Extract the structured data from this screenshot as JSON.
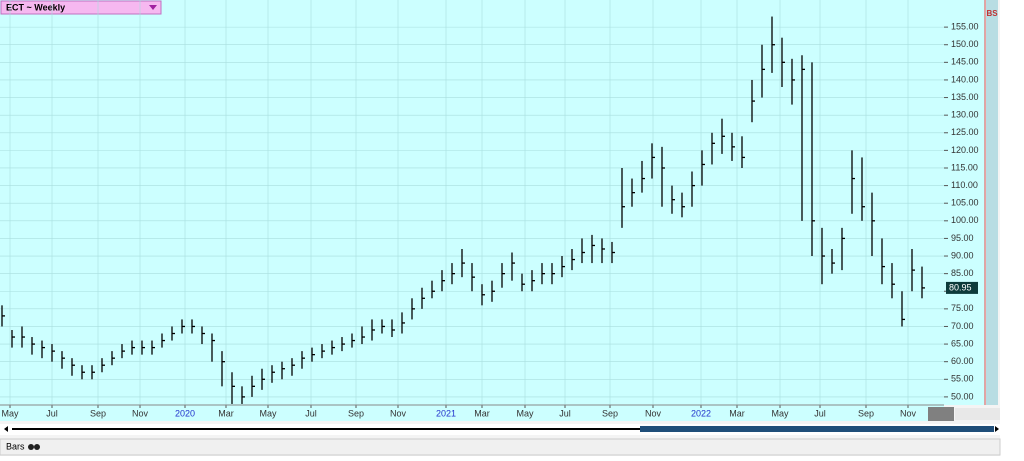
{
  "chart_data": {
    "type": "ohlc",
    "title": "ECT ~ Weekly",
    "footer_label": "Bars",
    "side_label": "BS",
    "color": "#000000",
    "grid": true,
    "background": "#ccffff",
    "year_label_color": "#2233cc",
    "last_label": "80.95",
    "xlim": [
      -0.2,
      94.2
    ],
    "xticks": [
      {
        "value": 0.8,
        "label": "May"
      },
      {
        "value": 5,
        "label": "Jul"
      },
      {
        "value": 9.6,
        "label": "Sep"
      },
      {
        "value": 13.8,
        "label": "Nov"
      },
      {
        "value": 18.3,
        "label": "2020"
      },
      {
        "value": 22.4,
        "label": "Mar"
      },
      {
        "value": 26.6,
        "label": "May"
      },
      {
        "value": 30.9,
        "label": "Jul"
      },
      {
        "value": 35.4,
        "label": "Sep"
      },
      {
        "value": 39.6,
        "label": "Nov"
      },
      {
        "value": 44.4,
        "label": "2021"
      },
      {
        "value": 48,
        "label": "Mar"
      },
      {
        "value": 52.3,
        "label": "May"
      },
      {
        "value": 56.3,
        "label": "Jul"
      },
      {
        "value": 60.8,
        "label": "Sep"
      },
      {
        "value": 65.1,
        "label": "Nov"
      },
      {
        "value": 69.9,
        "label": "2022"
      },
      {
        "value": 73.5,
        "label": "Mar"
      },
      {
        "value": 77.8,
        "label": "May"
      },
      {
        "value": 81.8,
        "label": "Jul"
      },
      {
        "value": 86.4,
        "label": "Sep"
      },
      {
        "value": 90.6,
        "label": "Nov"
      }
    ],
    "ylim": [
      47.7,
      162.7
    ],
    "yticks": [
      {
        "value": 50,
        "label": "50.00"
      },
      {
        "value": 55,
        "label": "55.00"
      },
      {
        "value": 60,
        "label": "60.00"
      },
      {
        "value": 65,
        "label": "65.00"
      },
      {
        "value": 70,
        "label": "70.00"
      },
      {
        "value": 75,
        "label": "75.00"
      },
      {
        "value": 80,
        "label": "80.00"
      },
      {
        "value": 85,
        "label": "85.00"
      },
      {
        "value": 90,
        "label": "90.00"
      },
      {
        "value": 95,
        "label": "95.00"
      },
      {
        "value": 100,
        "label": "100.00"
      },
      {
        "value": 105,
        "label": "105.00"
      },
      {
        "value": 110,
        "label": "110.00"
      },
      {
        "value": 115,
        "label": "115.00"
      },
      {
        "value": 120,
        "label": "120.00"
      },
      {
        "value": 125,
        "label": "125.00"
      },
      {
        "value": 130,
        "label": "130.00"
      },
      {
        "value": 135,
        "label": "135.00"
      },
      {
        "value": 140,
        "label": "140.00"
      },
      {
        "value": 145,
        "label": "145.00"
      },
      {
        "value": 150,
        "label": "150.00"
      },
      {
        "value": 155,
        "label": "155.00"
      }
    ],
    "high": [
      76,
      69,
      70,
      67,
      66,
      65,
      63,
      61,
      59,
      59,
      61,
      63,
      65,
      66,
      66,
      66,
      68,
      70,
      72,
      72,
      70,
      68,
      63,
      57,
      53,
      56,
      58,
      59,
      60,
      61,
      63,
      64,
      65,
      66,
      67,
      68,
      70,
      72,
      72,
      72,
      74,
      78,
      81,
      83,
      86,
      88,
      92,
      88,
      82,
      83,
      88,
      91,
      85,
      86,
      88,
      88,
      90,
      92,
      95,
      96,
      95,
      94,
      115,
      112,
      117,
      122,
      121,
      110,
      108,
      114,
      120,
      125,
      129,
      125,
      124,
      140,
      150,
      158,
      152,
      146,
      147,
      145,
      98,
      92,
      98,
      120,
      118,
      108,
      95,
      88,
      80,
      92,
      87
    ],
    "low": [
      70,
      64,
      64,
      62,
      61,
      60,
      58,
      56,
      55,
      55,
      57,
      59,
      61,
      62,
      62,
      62,
      64,
      66,
      68,
      68,
      65,
      60,
      53,
      48,
      48,
      50,
      52,
      54,
      55,
      56,
      58,
      60,
      61,
      62,
      63,
      64,
      65,
      66,
      68,
      67,
      68,
      72,
      75,
      78,
      80,
      82,
      84,
      80,
      76,
      77,
      81,
      83,
      80,
      80,
      82,
      82,
      84,
      86,
      88,
      88,
      88,
      88,
      98,
      104,
      108,
      112,
      104,
      102,
      101,
      104,
      110,
      116,
      119,
      117,
      115,
      128,
      135,
      142,
      138,
      133,
      100,
      90,
      82,
      85,
      86,
      102,
      100,
      90,
      82,
      78,
      70,
      80,
      78
    ],
    "close": [
      73,
      67,
      67,
      65,
      64,
      63,
      61,
      59,
      57,
      57,
      59,
      61,
      63,
      64,
      64,
      64,
      66,
      68,
      70,
      70,
      68,
      66,
      60,
      53,
      50,
      53,
      55,
      57,
      58,
      59,
      61,
      62,
      63,
      64,
      65,
      66,
      67,
      69,
      70,
      69,
      71,
      75,
      78,
      80,
      83,
      85,
      88,
      84,
      79,
      80,
      85,
      88,
      82,
      83,
      85,
      85,
      87,
      89,
      91,
      93,
      92,
      91,
      104,
      108,
      112,
      118,
      115,
      106,
      104,
      110,
      116,
      122,
      124,
      121,
      118,
      134,
      143,
      150,
      145,
      140,
      143,
      100,
      90,
      88,
      95,
      112,
      104,
      100,
      87,
      82,
      72,
      86,
      80.95
    ]
  }
}
